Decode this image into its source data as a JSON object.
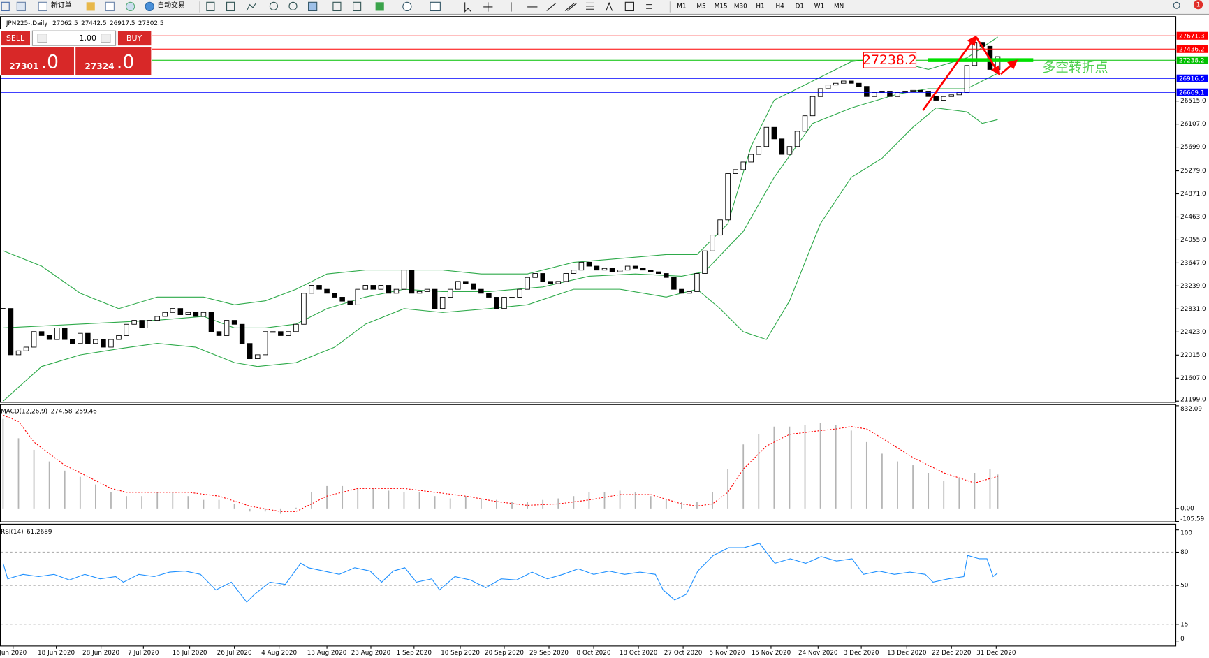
{
  "toolbar": {
    "new_order": "新订单",
    "auto_trading": "自动交易",
    "timeframes": [
      "M1",
      "M5",
      "M15",
      "M30",
      "H1",
      "H4",
      "D1",
      "W1",
      "MN"
    ],
    "notification_count": 1
  },
  "trade_panel": {
    "sell": "SELL",
    "lot": "1.00",
    "buy": "BUY",
    "bid_main": "27301",
    "bid_big": ".0",
    "ask_main": "27324",
    "ask_big": ".0"
  },
  "chart_data": [
    {
      "type": "candlestick",
      "title": "JPN225-,Daily",
      "ohlc_header": {
        "open": 27062.5,
        "high": 27442.5,
        "low": 26917.5
      },
      "xlim": [
        -0.4,
        152.1
      ],
      "ylim": [
        21185,
        28005
      ],
      "yticks": [
        {
          "value": 26515,
          "label": "26515.0"
        },
        {
          "value": 26107,
          "label": "26107.0"
        },
        {
          "value": 25699,
          "label": "25699.0"
        },
        {
          "value": 25279,
          "label": "25279.0"
        },
        {
          "value": 24871,
          "label": "24871.0"
        },
        {
          "value": 24463,
          "label": "24463.0"
        },
        {
          "value": 24055,
          "label": "24055.0"
        },
        {
          "value": 23647,
          "label": "23647.0"
        },
        {
          "value": 23239,
          "label": "23239.0"
        },
        {
          "value": 22831,
          "label": "22831.0"
        },
        {
          "value": 22423,
          "label": "22423.0"
        },
        {
          "value": 22015,
          "label": "22015.0"
        },
        {
          "value": 21607,
          "label": "21607.0"
        },
        {
          "value": 21199,
          "label": "21199.0"
        }
      ],
      "xticks": [
        {
          "value": 1.3,
          "label": "Jun 2020"
        },
        {
          "value": 6.9,
          "label": "18 Jun 2020"
        },
        {
          "value": 12.7,
          "label": "28 Jun 2020"
        },
        {
          "value": 18.2,
          "label": "7 Jul 2020"
        },
        {
          "value": 24.2,
          "label": "16 Jul 2020"
        },
        {
          "value": 30,
          "label": "26 Jul 2020"
        },
        {
          "value": 35.8,
          "label": "4 Aug 2020"
        },
        {
          "value": 42,
          "label": "13 Aug 2020"
        },
        {
          "value": 47.7,
          "label": "23 Aug 2020"
        },
        {
          "value": 53.3,
          "label": "1 Sep 2020"
        },
        {
          "value": 59.3,
          "label": "10 Sep 2020"
        },
        {
          "value": 65,
          "label": "20 Sep 2020"
        },
        {
          "value": 70.8,
          "label": "29 Sep 2020"
        },
        {
          "value": 76.6,
          "label": "8 Oct 2020"
        },
        {
          "value": 82.4,
          "label": "18 Oct 2020"
        },
        {
          "value": 88.2,
          "label": "27 Oct 2020"
        },
        {
          "value": 93.9,
          "label": "5 Nov 2020"
        },
        {
          "value": 99.6,
          "label": "15 Nov 2020"
        },
        {
          "value": 105.7,
          "label": "24 Nov 2020"
        },
        {
          "value": 111.3,
          "label": "3 Dec 2020"
        },
        {
          "value": 117.2,
          "label": "13 Dec 2020"
        },
        {
          "value": 123,
          "label": "22 Dec 2020"
        },
        {
          "value": 128.8,
          "label": "31 Dec 2020"
        }
      ],
      "close": [
        22840,
        22020,
        22090,
        22155,
        22430,
        22360,
        22290,
        22495,
        22290,
        22220,
        22400,
        22220,
        22290,
        22155,
        22290,
        22360,
        22560,
        22630,
        22495,
        22630,
        22700,
        22770,
        22840,
        22730,
        22770,
        22700,
        22770,
        22430,
        22360,
        22630,
        22560,
        22220,
        21950,
        22020,
        22430,
        22430,
        22360,
        22430,
        22560,
        23110,
        23250,
        23180,
        23110,
        23040,
        22970,
        22905,
        23180,
        23250,
        23180,
        23250,
        23110,
        23180,
        23520,
        23110,
        23140,
        23180,
        22840,
        23040,
        23180,
        23320,
        23280,
        23180,
        23110,
        23040,
        22840,
        23040,
        23040,
        23180,
        23390,
        23460,
        23320,
        23280,
        23320,
        23460,
        23520,
        23660,
        23590,
        23520,
        23550,
        23490,
        23520,
        23590,
        23550,
        23520,
        23490,
        23460,
        23390,
        23180,
        23110,
        23140,
        23460,
        23860,
        24140,
        24410,
        25230,
        25300,
        25435,
        25570,
        25710,
        26050,
        25845,
        25570,
        25710,
        25980,
        26255,
        26595,
        26735,
        26800,
        26830,
        26870,
        26830,
        26775,
        26595,
        26665,
        26690,
        26595,
        26665,
        26690,
        26705,
        26690,
        26595,
        26530,
        26595,
        26625,
        26665,
        27145,
        27555,
        27485,
        27075,
        27302.5
      ],
      "up_color": "#ffffff",
      "down_color": "#000000",
      "bands": [
        {
          "color": "#2eaa4a",
          "x": [
            0,
            5,
            10,
            15,
            20,
            26,
            30,
            34,
            38,
            42,
            47,
            52,
            57,
            62,
            68,
            74,
            80,
            86,
            90,
            94,
            97,
            100,
            105,
            110,
            114,
            120,
            125,
            129
          ],
          "values": [
            23863,
            23590,
            23111,
            22838,
            23043,
            23043,
            22906,
            22975,
            23180,
            23453,
            23521,
            23521,
            23521,
            23453,
            23453,
            23658,
            23726,
            23795,
            23795,
            24342,
            25708,
            26529,
            26870,
            27212,
            27281,
            27075,
            27281,
            27650
          ]
        },
        {
          "color": "#2eaa4a",
          "x": [
            0,
            10,
            20,
            26,
            30,
            34,
            38,
            42,
            47,
            52,
            57,
            63,
            70,
            76,
            82,
            88,
            91,
            96,
            100,
            105,
            110,
            116,
            120,
            125,
            129
          ],
          "values": [
            22496,
            22564,
            22633,
            22701,
            22496,
            22496,
            22564,
            22838,
            23043,
            23180,
            23139,
            23139,
            23221,
            23412,
            23453,
            23412,
            23494,
            24205,
            25162,
            26119,
            26392,
            26638,
            26734,
            26734,
            27007
          ]
        },
        {
          "color": "#2eaa4a",
          "x": [
            0,
            5,
            10,
            15,
            20,
            25,
            30,
            33,
            38,
            43,
            47,
            52,
            57,
            63,
            68,
            74,
            80,
            86,
            90,
            93,
            96,
            99,
            102,
            106,
            110,
            114,
            118,
            121,
            125,
            127,
            129
          ],
          "values": [
            21197,
            21812,
            22018,
            22127,
            22223,
            22154,
            21881,
            21812,
            21881,
            22154,
            22564,
            22838,
            22769,
            22838,
            22906,
            23180,
            23180,
            23043,
            23180,
            22838,
            22428,
            22291,
            22975,
            24342,
            25162,
            25503,
            26050,
            26392,
            26324,
            26119,
            26187
          ]
        }
      ],
      "levels": [
        {
          "value": 27671.3,
          "color": "#ff0000"
        },
        {
          "value": 27436.2,
          "color": "#ff0000"
        },
        {
          "value": 27238.2,
          "color": "#00c000"
        },
        {
          "value": 26916.5,
          "color": "#0000ff"
        },
        {
          "value": 26669.1,
          "color": "#0000ff"
        }
      ],
      "annotations": [
        "27238.2",
        "多空转折点"
      ]
    },
    {
      "type": "macd",
      "title": "MACD(12,26,9)",
      "ylim": [
        -105.59,
        832.09
      ],
      "yticks": [
        832.09,
        {
          "value": 0,
          "label": "0.00"
        },
        -105.59
      ],
      "histogram": {
        "color": "#b4b4b4",
        "x": [
          0,
          2,
          4,
          6,
          8,
          10,
          12,
          14,
          16,
          18,
          20,
          22,
          24,
          26,
          28,
          30,
          32,
          34,
          36,
          38,
          40,
          42,
          44,
          46,
          48,
          50,
          52,
          54,
          56,
          58,
          60,
          62,
          64,
          66,
          68,
          70,
          72,
          74,
          76,
          78,
          80,
          82,
          84,
          86,
          88,
          90,
          92,
          94,
          96,
          98,
          100,
          102,
          104,
          106,
          108,
          110,
          112,
          114,
          116,
          118,
          120,
          122,
          124,
          126,
          128,
          129
        ],
        "values": [
          725,
          569,
          475,
          381,
          306,
          256,
          194,
          131,
          100,
          100,
          131,
          131,
          100,
          69,
          69,
          37,
          -25,
          -25,
          -44,
          6,
          131,
          181,
          181,
          162,
          162,
          144,
          131,
          131,
          100,
          81,
          100,
          81,
          69,
          56,
          56,
          69,
          81,
          100,
          131,
          131,
          144,
          131,
          100,
          69,
          56,
          56,
          131,
          319,
          519,
          600,
          663,
          663,
          675,
          694,
          675,
          631,
          538,
          444,
          381,
          350,
          288,
          225,
          244,
          288,
          319,
          274.58
        ]
      },
      "signal": {
        "color": "#ff0000",
        "x": [
          0,
          2,
          4,
          6,
          8,
          10,
          12,
          14,
          16,
          20,
          24,
          28,
          32,
          36,
          38,
          40,
          42,
          46,
          52,
          56,
          60,
          64,
          68,
          72,
          76,
          80,
          84,
          88,
          90,
          92,
          94,
          96,
          99,
          102,
          106,
          108,
          110,
          112,
          114,
          118,
          122,
          126,
          129
        ],
        "values": [
          756,
          706,
          538,
          444,
          350,
          288,
          225,
          162,
          131,
          131,
          131,
          100,
          19,
          -25,
          -25,
          37,
          100,
          162,
          162,
          131,
          100,
          56,
          25,
          37,
          69,
          112,
          112,
          37,
          19,
          37,
          131,
          319,
          506,
          600,
          631,
          644,
          663,
          644,
          569,
          413,
          288,
          206,
          259.46
        ]
      }
    },
    {
      "type": "line",
      "title": "RSI(14)",
      "ylim": [
        0,
        100
      ],
      "yticks": [
        0,
        15,
        50,
        80,
        100
      ],
      "grid": true,
      "color": "#1e90ff",
      "x": [
        0,
        0.6,
        2.6,
        4.6,
        6.6,
        8.6,
        10.6,
        12.6,
        14.6,
        15.6,
        17.6,
        19.6,
        21.6,
        23.6,
        25.6,
        27.6,
        29.6,
        31.6,
        32.6,
        34.6,
        36.6,
        38.6,
        39.6,
        41.6,
        43.6,
        45.6,
        47.6,
        49.1,
        50.6,
        52.1,
        53.6,
        55.6,
        56.6,
        58.6,
        60.6,
        62.6,
        64.6,
        66.6,
        68.6,
        70.6,
        72.6,
        74.6,
        76.6,
        78.6,
        80.6,
        82.6,
        84.6,
        85.6,
        87.1,
        88.6,
        90.1,
        92.1,
        94.1,
        96.1,
        98.1,
        100.1,
        102.1,
        104.1,
        106.1,
        108.1,
        110.1,
        111.6,
        113.6,
        115.6,
        117.6,
        119.6,
        120.6,
        122.6,
        124.6,
        125.1,
        126.6,
        127.6,
        128.4,
        129
      ],
      "values": [
        70,
        56,
        60,
        58,
        60,
        55,
        60,
        56,
        58,
        53,
        60,
        58,
        62,
        63,
        60,
        46,
        53,
        35,
        42,
        53,
        51,
        70,
        66,
        63,
        60,
        66,
        63,
        53,
        63,
        66,
        53,
        56,
        46,
        58,
        55,
        48,
        56,
        55,
        62,
        56,
        60,
        65,
        60,
        63,
        60,
        62,
        60,
        46,
        37,
        42,
        63,
        77,
        84,
        84,
        88,
        70,
        74,
        70,
        76,
        72,
        74,
        60,
        63,
        60,
        62,
        60,
        53,
        56,
        58,
        77,
        74,
        74,
        58,
        61.2689
      ]
    }
  ]
}
